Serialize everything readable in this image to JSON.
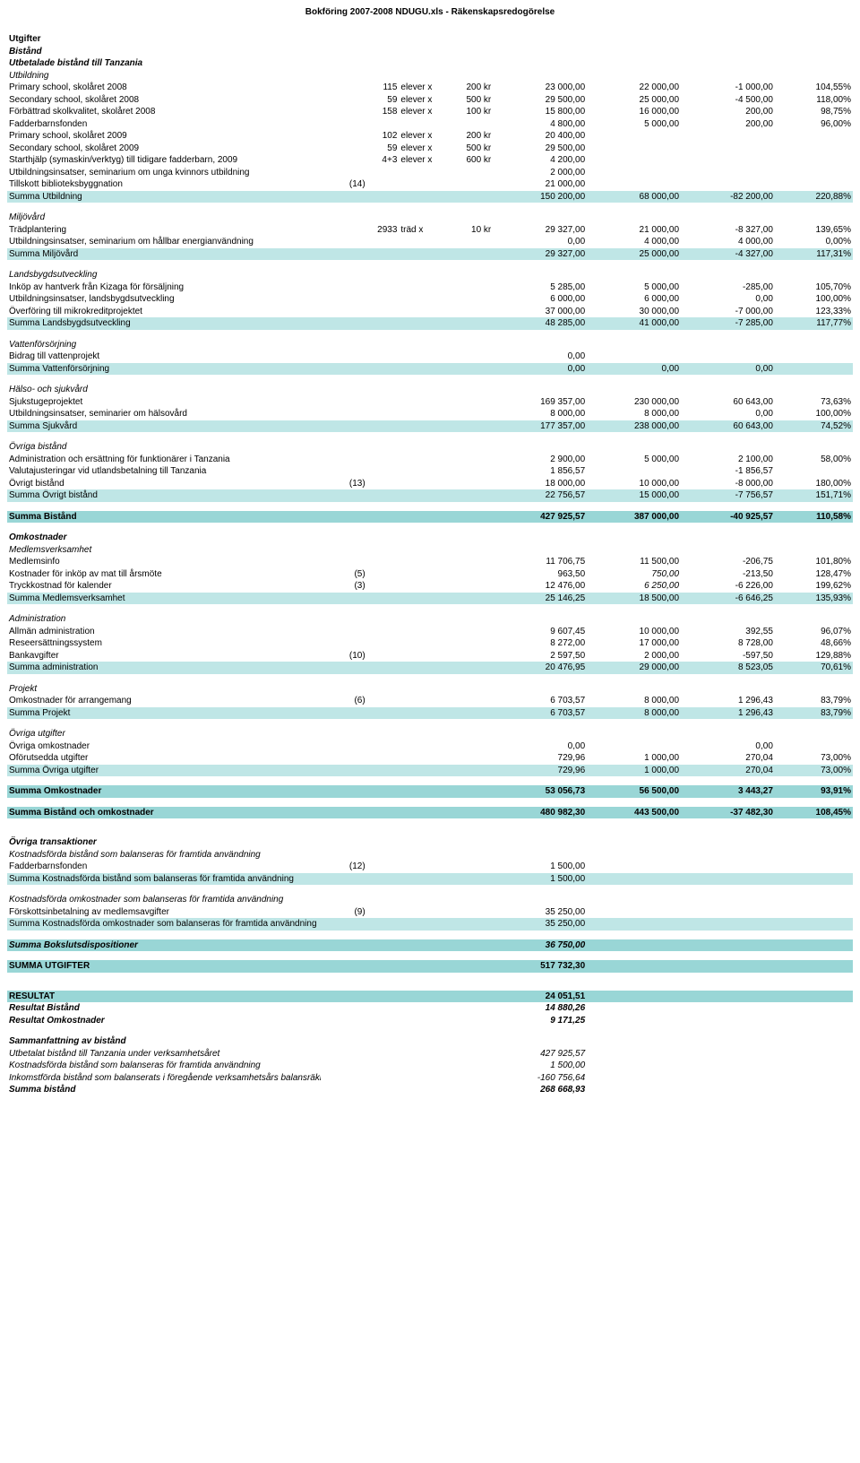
{
  "header": "Bokföring 2007-2008 NDUGU.xls - Räkenskapsredogörelse",
  "rows": [
    {
      "type": "row",
      "cls": "b",
      "c0": "Utgifter"
    },
    {
      "type": "row",
      "cls": "b i",
      "c0": "Bistånd"
    },
    {
      "type": "row",
      "cls": "b i",
      "c0": "Utbetalade bistånd till Tanzania"
    },
    {
      "type": "row",
      "cls": "i",
      "c0": "Utbildning"
    },
    {
      "type": "row",
      "c0": "Primary school, skolåret 2008",
      "c2": "115",
      "c3": "elever x",
      "c4": "200 kr",
      "c5": "23 000,00",
      "c6": "22 000,00",
      "c7": "-1 000,00",
      "c8": "104,55%"
    },
    {
      "type": "row",
      "c0": "Secondary school, skolåret 2008",
      "c2": "59",
      "c3": "elever x",
      "c4": "500 kr",
      "c5": "29 500,00",
      "c6": "25 000,00",
      "c7": "-4 500,00",
      "c8": "118,00%"
    },
    {
      "type": "row",
      "c0": "Förbättrad skolkvalitet, skolåret 2008",
      "c2": "158",
      "c3": "elever x",
      "c4": "100 kr",
      "c5": "15 800,00",
      "c6": "16 000,00",
      "c7": "200,00",
      "c8": "98,75%"
    },
    {
      "type": "row",
      "c0": "Fadderbarnsfonden",
      "c5": "4 800,00",
      "c6": "5 000,00",
      "c7": "200,00",
      "c8": "96,00%"
    },
    {
      "type": "row",
      "c0": "Primary school, skolåret 2009",
      "c2": "102",
      "c3": "elever x",
      "c4": "200 kr",
      "c5": "20 400,00"
    },
    {
      "type": "row",
      "c0": "Secondary school, skolåret 2009",
      "c2": "59",
      "c3": "elever x",
      "c4": "500 kr",
      "c5": "29 500,00"
    },
    {
      "type": "row",
      "c0": "Starthjälp (symaskin/verktyg) till tidigare fadderbarn, 2009",
      "c2": "4+3",
      "c3": "elever x",
      "c4": "600 kr",
      "c5": "4 200,00"
    },
    {
      "type": "row",
      "c0": "Utbildningsinsatser, seminarium om unga kvinnors utbildning",
      "c5": "2 000,00"
    },
    {
      "type": "row",
      "c0": "Tillskott biblioteksbyggnation",
      "c1": "(14)",
      "c5": "21 000,00"
    },
    {
      "type": "row",
      "hl": true,
      "c0": "Summa Utbildning",
      "c5": "150 200,00",
      "c6": "68 000,00",
      "c7": "-82 200,00",
      "c8": "220,88%"
    },
    {
      "type": "sp"
    },
    {
      "type": "row",
      "cls": "i",
      "c0": "Miljövård"
    },
    {
      "type": "row",
      "c0": "Trädplantering",
      "c2": "2933",
      "c3": "träd x",
      "c4": "10 kr",
      "c5": "29 327,00",
      "c6": "21 000,00",
      "c7": "-8 327,00",
      "c8": "139,65%"
    },
    {
      "type": "row",
      "c0": "Utbildningsinsatser, seminarium om hållbar energianvändning",
      "c5": "0,00",
      "c6": "4 000,00",
      "c7": "4 000,00",
      "c8": "0,00%"
    },
    {
      "type": "row",
      "hl": true,
      "c0": "Summa Miljövård",
      "c5": "29 327,00",
      "c6": "25 000,00",
      "c7": "-4 327,00",
      "c8": "117,31%"
    },
    {
      "type": "sp"
    },
    {
      "type": "row",
      "cls": "i",
      "c0": "Landsbygdsutveckling"
    },
    {
      "type": "row",
      "c0": "Inköp av hantverk från Kizaga för försäljning",
      "c5": "5 285,00",
      "c6": "5 000,00",
      "c7": "-285,00",
      "c8": "105,70%"
    },
    {
      "type": "row",
      "c0": "Utbildningsinsatser, landsbygdsutveckling",
      "c5": "6 000,00",
      "c6": "6 000,00",
      "c7": "0,00",
      "c8": "100,00%"
    },
    {
      "type": "row",
      "c0": "Överföring till mikrokreditprojektet",
      "c5": "37 000,00",
      "c6": "30 000,00",
      "c7": "-7 000,00",
      "c8": "123,33%"
    },
    {
      "type": "row",
      "hl": true,
      "c0": "Summa Landsbygdsutveckling",
      "c5": "48 285,00",
      "c6": "41 000,00",
      "c7": "-7 285,00",
      "c8": "117,77%"
    },
    {
      "type": "sp"
    },
    {
      "type": "row",
      "cls": "i",
      "c0": "Vattenförsörjning"
    },
    {
      "type": "row",
      "c0": "Bidrag till vattenprojekt",
      "c5": "0,00"
    },
    {
      "type": "row",
      "hl": true,
      "c0": "Summa Vattenförsörjning",
      "c5": "0,00",
      "c6": "0,00",
      "c7": "0,00"
    },
    {
      "type": "sp"
    },
    {
      "type": "row",
      "cls": "i",
      "c0": "Hälso- och sjukvård"
    },
    {
      "type": "row",
      "c0": "Sjukstugeprojektet",
      "c5": "169 357,00",
      "c6": "230 000,00",
      "c7": "60 643,00",
      "c8": "73,63%"
    },
    {
      "type": "row",
      "c0": "Utbildningsinsatser, seminarier om hälsovård",
      "c5": "8 000,00",
      "c6": "8 000,00",
      "c7": "0,00",
      "c8": "100,00%"
    },
    {
      "type": "row",
      "hl": true,
      "c0": "Summa Sjukvård",
      "c5": "177 357,00",
      "c6": "238 000,00",
      "c7": "60 643,00",
      "c8": "74,52%"
    },
    {
      "type": "sp"
    },
    {
      "type": "row",
      "cls": "i",
      "c0": "Övriga bistånd"
    },
    {
      "type": "row",
      "c0": "Administration och ersättning för funktionärer i Tanzania",
      "c5": "2 900,00",
      "c6": "5 000,00",
      "c7": "2 100,00",
      "c8": "58,00%"
    },
    {
      "type": "row",
      "c0": "Valutajusteringar vid utlandsbetalning till Tanzania",
      "c5": "1 856,57",
      "c7": "-1 856,57"
    },
    {
      "type": "row",
      "c0": "Övrigt bistånd",
      "c1": "(13)",
      "c5": "18 000,00",
      "c6": "10 000,00",
      "c7": "-8 000,00",
      "c8": "180,00%"
    },
    {
      "type": "row",
      "hl": true,
      "c0": "Summa Övrigt bistånd",
      "c5": "22 756,57",
      "c6": "15 000,00",
      "c7": "-7 756,57",
      "c8": "151,71%"
    },
    {
      "type": "sp"
    },
    {
      "type": "row",
      "bhl": true,
      "cls": "b",
      "c0": "Summa Bistånd",
      "c5": "427 925,57",
      "c6": "387 000,00",
      "c7": "-40 925,57",
      "c8": "110,58%"
    },
    {
      "type": "sp"
    },
    {
      "type": "row",
      "cls": "b i",
      "c0": "Omkostnader"
    },
    {
      "type": "row",
      "cls": "i",
      "c0": "Medlemsverksamhet"
    },
    {
      "type": "row",
      "c0": "Medlemsinfo",
      "c5": "11 706,75",
      "c6": "11 500,00",
      "c7": "-206,75",
      "c8": "101,80%"
    },
    {
      "type": "row",
      "c0": "Kostnader för inköp av mat till årsmöte",
      "c1": "(5)",
      "c5": "963,50",
      "c6i": "750,00",
      "c7": "-213,50",
      "c8": "128,47%"
    },
    {
      "type": "row",
      "c0": "Tryckkostnad för kalender",
      "c1": "(3)",
      "c5": "12 476,00",
      "c6i": "6 250,00",
      "c7": "-6 226,00",
      "c8": "199,62%"
    },
    {
      "type": "row",
      "hl": true,
      "c0": "Summa Medlemsverksamhet",
      "c5": "25 146,25",
      "c6": "18 500,00",
      "c7": "-6 646,25",
      "c8": "135,93%"
    },
    {
      "type": "sp"
    },
    {
      "type": "row",
      "cls": "i",
      "c0": "Administration"
    },
    {
      "type": "row",
      "c0": "Allmän administration",
      "c5": "9 607,45",
      "c6": "10 000,00",
      "c7": "392,55",
      "c8": "96,07%"
    },
    {
      "type": "row",
      "c0": "Reseersättningssystem",
      "c5": "8 272,00",
      "c6": "17 000,00",
      "c7": "8 728,00",
      "c8": "48,66%"
    },
    {
      "type": "row",
      "c0": "Bankavgifter",
      "c1": "(10)",
      "c5": "2 597,50",
      "c6": "2 000,00",
      "c7": "-597,50",
      "c8": "129,88%"
    },
    {
      "type": "row",
      "hl": true,
      "c0": "Summa administration",
      "c5": "20 476,95",
      "c6": "29 000,00",
      "c7": "8 523,05",
      "c8": "70,61%"
    },
    {
      "type": "sp"
    },
    {
      "type": "row",
      "cls": "i",
      "c0": "Projekt"
    },
    {
      "type": "row",
      "c0": "Omkostnader för arrangemang",
      "c1": "(6)",
      "c5": "6 703,57",
      "c6": "8 000,00",
      "c7": "1 296,43",
      "c8": "83,79%"
    },
    {
      "type": "row",
      "hl": true,
      "c0": "Summa Projekt",
      "c5": "6 703,57",
      "c6": "8 000,00",
      "c7": "1 296,43",
      "c8": "83,79%"
    },
    {
      "type": "sp"
    },
    {
      "type": "row",
      "cls": "i",
      "c0": "Övriga utgifter"
    },
    {
      "type": "row",
      "c0": "Övriga omkostnader",
      "c5": "0,00",
      "c7": "0,00"
    },
    {
      "type": "row",
      "c0": "Oförutsedda utgifter",
      "c5": "729,96",
      "c6": "1 000,00",
      "c7": "270,04",
      "c8": "73,00%"
    },
    {
      "type": "row",
      "hl": true,
      "c0": "Summa Övriga utgifter",
      "c5": "729,96",
      "c6": "1 000,00",
      "c7": "270,04",
      "c8": "73,00%"
    },
    {
      "type": "sp"
    },
    {
      "type": "row",
      "bhl": true,
      "cls": "b",
      "c0": "Summa Omkostnader",
      "c5": "53 056,73",
      "c6": "56 500,00",
      "c7": "3 443,27",
      "c8": "93,91%"
    },
    {
      "type": "sp"
    },
    {
      "type": "row",
      "bhl": true,
      "cls": "b",
      "c0": "Summa Bistånd och omkostnader",
      "c5": "480 982,30",
      "c6": "443 500,00",
      "c7": "-37 482,30",
      "c8": "108,45%"
    },
    {
      "type": "sp"
    },
    {
      "type": "sp"
    },
    {
      "type": "row",
      "cls": "b i",
      "c0": "Övriga transaktioner"
    },
    {
      "type": "row",
      "cls": "i",
      "c0": "Kostnadsförda bistånd som balanseras för framtida användning"
    },
    {
      "type": "row",
      "c0": "Fadderbarnsfonden",
      "c1": "(12)",
      "c5": "1 500,00"
    },
    {
      "type": "row",
      "hl": true,
      "c0": "Summa Kostnadsförda bistånd som balanseras för framtida användning",
      "c5": "1 500,00"
    },
    {
      "type": "sp"
    },
    {
      "type": "row",
      "cls": "i",
      "c0": "Kostnadsförda omkostnader som balanseras för framtida användning"
    },
    {
      "type": "row",
      "c0": "Förskottsinbetalning av medlemsavgifter",
      "c1": "(9)",
      "c5": "35 250,00"
    },
    {
      "type": "row",
      "hl": true,
      "c0": "Summa Kostnadsförda omkostnader som balanseras för framtida användning",
      "c5": "35 250,00"
    },
    {
      "type": "sp"
    },
    {
      "type": "row",
      "bhl": true,
      "cls": "b i",
      "c0": "Summa Bokslutsdispositioner",
      "c5": "36 750,00"
    },
    {
      "type": "sp"
    },
    {
      "type": "row",
      "bhl": true,
      "cls": "b",
      "c0": "SUMMA UTGIFTER",
      "c5": "517 732,30"
    },
    {
      "type": "sp"
    },
    {
      "type": "sp"
    },
    {
      "type": "row",
      "bhl": true,
      "cls": "b",
      "c0": "RESULTAT",
      "c5": "24 051,51"
    },
    {
      "type": "row",
      "cls": "b i",
      "c0": "Resultat Bistånd",
      "c5": "14 880,26"
    },
    {
      "type": "row",
      "cls": "b i",
      "c0": "Resultat Omkostnader",
      "c5": "9 171,25"
    },
    {
      "type": "sp"
    },
    {
      "type": "row",
      "cls": "b i",
      "c0": "Sammanfattning av bistånd"
    },
    {
      "type": "row",
      "cls": "i",
      "c0": "Utbetalat bistånd till Tanzania under verksamhetsåret",
      "c5": "427 925,57"
    },
    {
      "type": "row",
      "cls": "i",
      "c0": "Kostnadsförda bistånd som balanseras för framtida användning",
      "c5": "1 500,00"
    },
    {
      "type": "row",
      "cls": "i",
      "c0": "Inkomstförda bistånd som balanserats i föregående verksamhetsårs balansräkning",
      "c5": "-160 756,64"
    },
    {
      "type": "row",
      "cls": "b i",
      "c0": "Summa bistånd",
      "c5": "268 668,93"
    }
  ]
}
